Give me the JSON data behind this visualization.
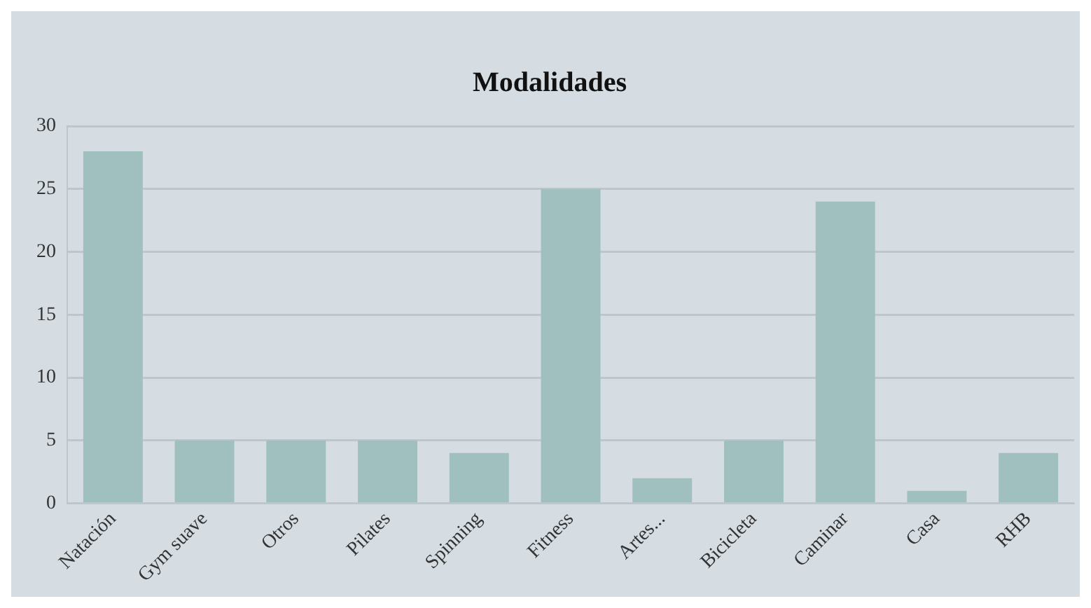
{
  "chart_data": {
    "type": "bar",
    "title": "Modalidades",
    "categories": [
      "Natación",
      "Gym suave",
      "Otros",
      "Pilates",
      "Spinning",
      "Fitness",
      "Artes...",
      "Bicicleta",
      "Caminar",
      "Casa",
      "RHB"
    ],
    "values": [
      28,
      5,
      5,
      5,
      4,
      25,
      2,
      5,
      24,
      1,
      4
    ],
    "color": "#a0bfbf",
    "ylim": [
      0,
      30
    ],
    "yticks": [
      0,
      5,
      10,
      15,
      20,
      25,
      30
    ],
    "grid": "y",
    "legend": false
  }
}
